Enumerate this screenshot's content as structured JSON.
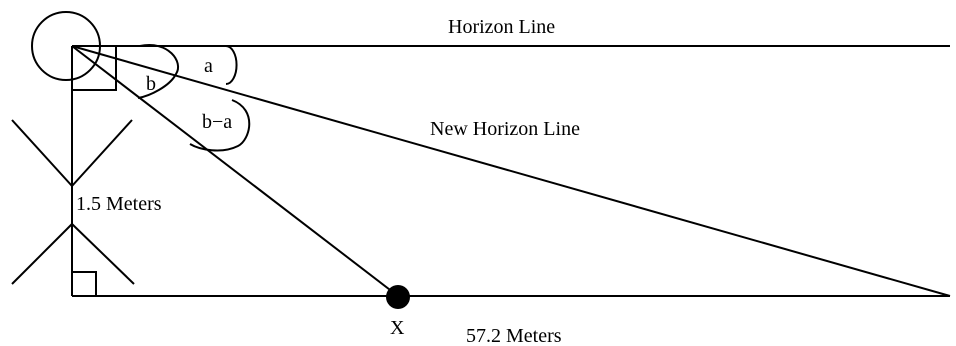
{
  "diagram": {
    "labels": {
      "horizon_line": "Horizon Line",
      "new_horizon_line": "New Horizon Line",
      "angle_a": "a",
      "angle_b": "b",
      "angle_b_minus_a": "b−a",
      "height": "1.5 Meters",
      "point_x": "X",
      "distance": "57.2 Meters"
    },
    "colors": {
      "stroke": "#000000",
      "fill": "#000000",
      "background": "#ffffff"
    }
  }
}
